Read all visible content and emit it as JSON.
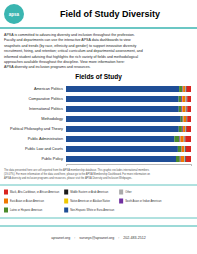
{
  "chart_data": {
    "type": "bar",
    "orientation": "horizontal",
    "stacked": true,
    "title": "Field of Study Diversity",
    "subtitle": "Fields of Study",
    "annotations": [
      [
        "apsa"
      ],
      [
        "APSA is committed to advancing diversity and inclusion throughout the profession.",
        "Faculty and departments can use the interactive APSA data dashboards to view",
        "snapshots and trends (by race, ethnicity and gender) to support innovative diversity",
        "recruitment, hiring, and retention; critical curriculum and departmental assessment, and",
        "informed student advising that highlights the rich variety of fields and methodological",
        "approaches available throughout the discipline. View more information here:",
        "APSA diversity and inclusion programs and resources."
      ],
      [
        "The data presented here are self-reported from the APSA membership database. This graphic excludes international members",
        "(19.07%). For more information of the data used here, please go to the APSA Membership Dashboard. For more information on",
        "APSA diversity and inclusion programs and resources, please visit the APSA Diversity and Inclusion Webpages."
      ],
      [
        "apsanet.org    :    surveys@apsanet.org    :    202-483-2512"
      ]
    ],
    "categories": [
      "American Politics",
      "Comparative Politics",
      "International Politics",
      "Methodology",
      "Political Philosophy and Theory",
      "Public Administration",
      "Public Law and Courts",
      "Public Policy"
    ],
    "series": [
      {
        "name": "Non-Hispanic White or Euro-American",
        "color": "#1f4e96",
        "values": [
          90.5,
          90.1,
          90.2,
          91.8,
          90.2,
          86.7,
          89.5,
          88.0
        ]
      },
      {
        "name": "Latinx or Hispanic American",
        "color": "#4b8b2b",
        "values": [
          2.5,
          2.0,
          2.0,
          1.5,
          2.5,
          4.0,
          2.5,
          3.0
        ]
      },
      {
        "name": "South Asian or Indian American",
        "color": "#7030a0",
        "values": [
          0.5,
          0.8,
          0.8,
          0.5,
          0.8,
          0.8,
          0.5,
          0.8
        ]
      },
      {
        "name": "Native American or Alaskan Native",
        "color": "#f0c800",
        "values": [
          0.2,
          0.2,
          0.2,
          0.2,
          0.2,
          0.2,
          0.2,
          0.2
        ]
      },
      {
        "name": "East Asian or Asian American",
        "color": "#f07800",
        "values": [
          1.5,
          2.5,
          2.5,
          2.0,
          1.5,
          2.5,
          2.0,
          2.5
        ]
      },
      {
        "name": "Other",
        "color": "#aaaaaa",
        "values": [
          0.8,
          1.0,
          0.8,
          0.5,
          0.8,
          0.8,
          0.8,
          1.0
        ]
      },
      {
        "name": "Middle Eastern or Arab American",
        "color": "#1a1a1a",
        "values": [
          0.5,
          0.4,
          0.5,
          0.5,
          0.5,
          0.5,
          0.5,
          0.5
        ]
      },
      {
        "name": "Black, Afro-Caribbean, or African American",
        "color": "#d9241f",
        "values": [
          3.5,
          3.0,
          3.0,
          3.0,
          3.5,
          4.5,
          4.0,
          4.0
        ]
      }
    ],
    "xlim": [
      0,
      100
    ],
    "xticks": [],
    "tick_labels": "y",
    "grid": false,
    "legend": "bottom"
  }
}
